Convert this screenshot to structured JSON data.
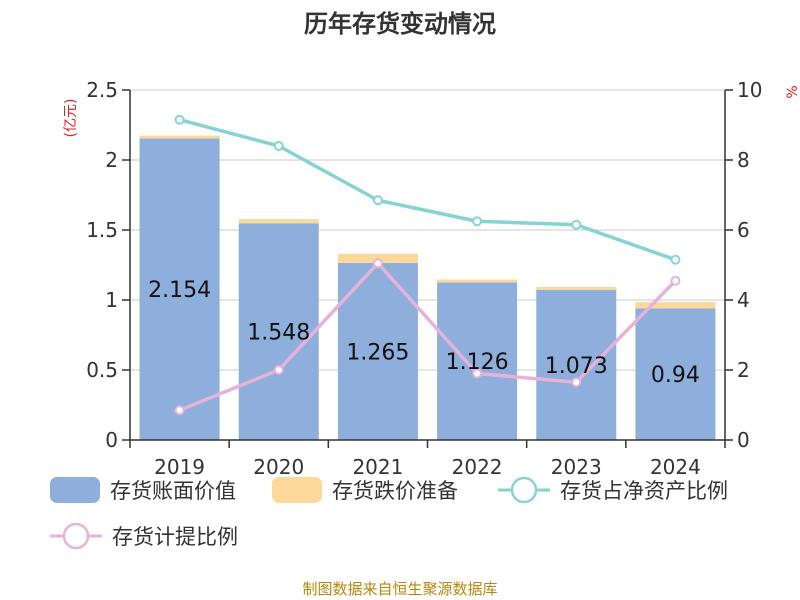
{
  "title": "历年存货变动情况",
  "source": "制图数据来自恒生聚源数据库",
  "left_unit": "(亿元)",
  "right_unit": "%",
  "colors": {
    "book_value": "#8eaedb",
    "reserve": "#fcd89a",
    "ratio_net_assets": "#86d3d4",
    "provision_ratio": "#e5b3da"
  },
  "chart_data": {
    "type": "bar",
    "categories": [
      "2019",
      "2020",
      "2021",
      "2022",
      "2023",
      "2024"
    ],
    "series": [
      {
        "name": "存货账面价值",
        "type": "bar",
        "axis": "left",
        "stack": "s",
        "values": [
          2.154,
          1.548,
          1.265,
          1.126,
          1.073,
          0.94
        ]
      },
      {
        "name": "存货跌价准备",
        "type": "bar",
        "axis": "left",
        "stack": "s",
        "values": [
          0.02,
          0.03,
          0.065,
          0.02,
          0.02,
          0.045
        ]
      },
      {
        "name": "存货占净资产比例",
        "type": "line",
        "axis": "right",
        "values": [
          9.15,
          8.4,
          6.85,
          6.25,
          6.15,
          5.15
        ]
      },
      {
        "name": "存货计提比例",
        "type": "line",
        "axis": "right",
        "values": [
          0.85,
          2.0,
          5.05,
          1.9,
          1.65,
          4.55
        ]
      }
    ],
    "data_labels": [
      "2.154",
      "1.548",
      "1.265",
      "1.126",
      "1.073",
      "0.94"
    ],
    "y_left": {
      "min": 0,
      "max": 2.5,
      "ticks": [
        "0",
        "0.5",
        "1",
        "1.5",
        "2",
        "2.5"
      ]
    },
    "y_right": {
      "min": 0,
      "max": 10,
      "ticks": [
        "0",
        "2",
        "4",
        "6",
        "8",
        "10"
      ]
    },
    "grid": true,
    "legend_position": "bottom"
  }
}
